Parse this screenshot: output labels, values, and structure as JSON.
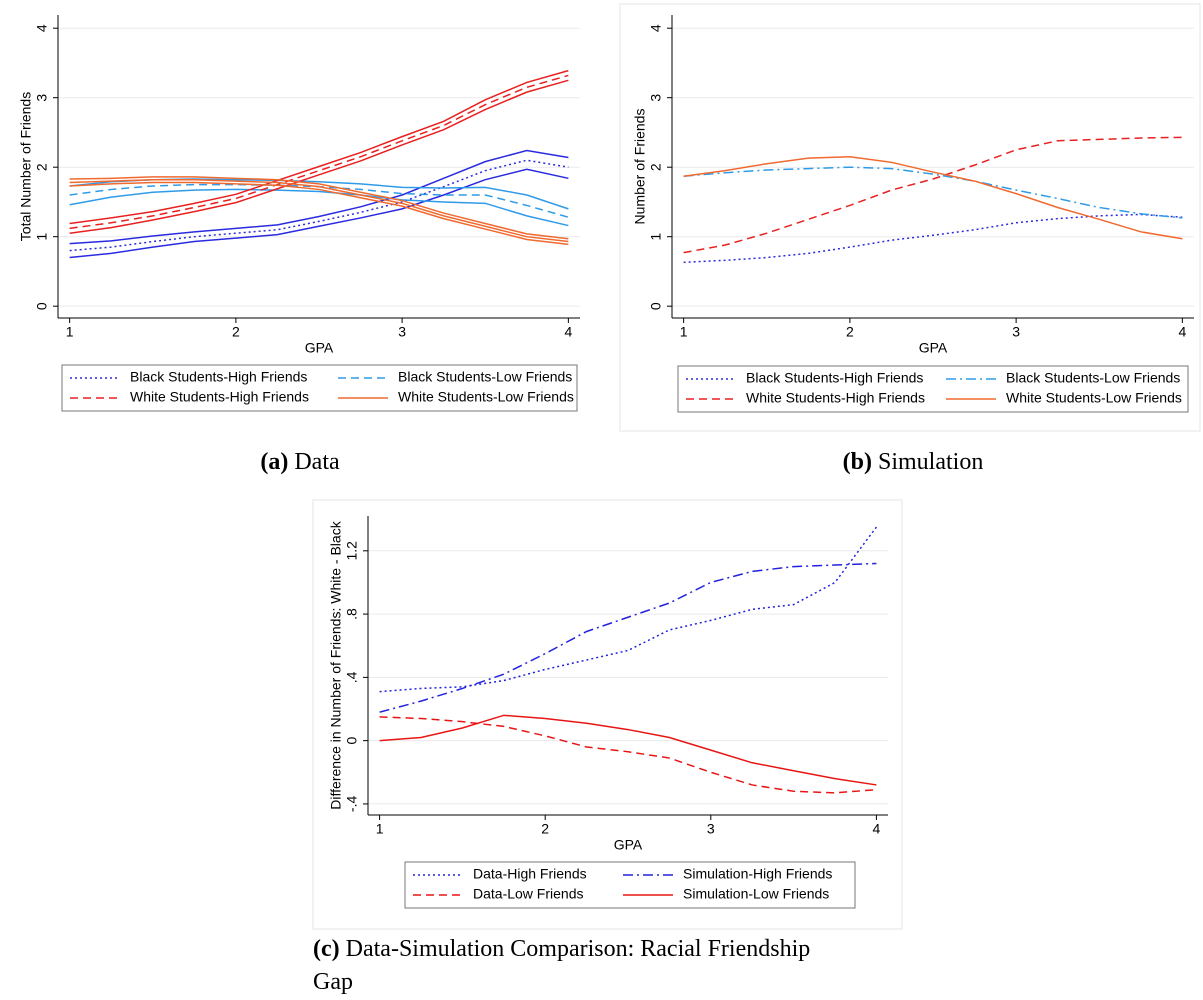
{
  "chart_data": [
    {
      "type": "line",
      "label": "(a)",
      "caption": [
        "Data"
      ],
      "xlabel": "GPA",
      "ylabel": "Total Number of Friends",
      "x": [
        1,
        1.25,
        1.5,
        1.75,
        2,
        2.25,
        2.5,
        2.75,
        3,
        3.25,
        3.5,
        3.75,
        4
      ],
      "xlim": [
        0.93,
        4.07
      ],
      "xticks": [
        1,
        2,
        3,
        4
      ],
      "ylim": [
        -0.17,
        4.19
      ],
      "yticks": [
        0,
        1,
        2,
        3,
        4
      ],
      "grid": true,
      "series": [
        {
          "name": "Black Students-High Friends",
          "color": "#2a2ae0",
          "style": "dotted",
          "values": [
            0.8,
            0.85,
            0.93,
            1.0,
            1.05,
            1.1,
            1.22,
            1.35,
            1.5,
            1.72,
            1.95,
            2.1,
            2.0
          ],
          "lower": [
            0.7,
            0.76,
            0.85,
            0.93,
            0.98,
            1.03,
            1.15,
            1.27,
            1.4,
            1.6,
            1.82,
            1.97,
            1.84
          ],
          "upper": [
            0.9,
            0.94,
            1.01,
            1.07,
            1.12,
            1.17,
            1.29,
            1.43,
            1.6,
            1.84,
            2.08,
            2.24,
            2.14
          ]
        },
        {
          "name": "Black Students-Low Friends",
          "color": "#2f9be8",
          "style": "dashed",
          "values": [
            1.6,
            1.68,
            1.73,
            1.75,
            1.75,
            1.74,
            1.72,
            1.68,
            1.62,
            1.6,
            1.6,
            1.45,
            1.28
          ],
          "lower": [
            1.46,
            1.57,
            1.64,
            1.67,
            1.68,
            1.67,
            1.65,
            1.6,
            1.53,
            1.5,
            1.48,
            1.3,
            1.16
          ],
          "upper": [
            1.73,
            1.79,
            1.82,
            1.83,
            1.82,
            1.81,
            1.79,
            1.76,
            1.71,
            1.7,
            1.71,
            1.6,
            1.4
          ]
        },
        {
          "name": "White Students-High Friends",
          "color": "#e82020",
          "style": "dashed",
          "values": [
            1.12,
            1.2,
            1.3,
            1.42,
            1.55,
            1.75,
            1.95,
            2.15,
            2.38,
            2.6,
            2.9,
            3.15,
            3.32
          ],
          "lower": [
            1.05,
            1.13,
            1.24,
            1.36,
            1.49,
            1.69,
            1.89,
            2.09,
            2.32,
            2.54,
            2.83,
            3.08,
            3.25
          ],
          "upper": [
            1.19,
            1.27,
            1.36,
            1.48,
            1.61,
            1.81,
            2.01,
            2.21,
            2.44,
            2.66,
            2.97,
            3.22,
            3.39
          ]
        },
        {
          "name": "White Students-Low Friends",
          "color": "#f06a30",
          "style": "solid",
          "values": [
            1.78,
            1.8,
            1.82,
            1.82,
            1.8,
            1.78,
            1.72,
            1.6,
            1.48,
            1.3,
            1.15,
            1.0,
            0.93
          ],
          "lower": [
            1.73,
            1.76,
            1.78,
            1.78,
            1.76,
            1.74,
            1.68,
            1.56,
            1.44,
            1.26,
            1.11,
            0.96,
            0.89
          ],
          "upper": [
            1.83,
            1.84,
            1.86,
            1.86,
            1.84,
            1.82,
            1.76,
            1.64,
            1.52,
            1.34,
            1.19,
            1.04,
            0.97
          ]
        }
      ]
    },
    {
      "type": "line",
      "label": "(b)",
      "caption": [
        "Simulation"
      ],
      "xlabel": "GPA",
      "ylabel": "Number of Friends",
      "x": [
        1,
        1.25,
        1.5,
        1.75,
        2,
        2.25,
        2.5,
        2.75,
        3,
        3.25,
        3.5,
        3.75,
        4
      ],
      "xlim": [
        0.93,
        4.07
      ],
      "xticks": [
        1,
        2,
        3,
        4
      ],
      "ylim": [
        -0.17,
        4.19
      ],
      "yticks": [
        0,
        1,
        2,
        3,
        4
      ],
      "grid": true,
      "series": [
        {
          "name": "Black Students-High Friends",
          "color": "#2a2ae0",
          "style": "dotted",
          "values": [
            0.63,
            0.66,
            0.7,
            0.76,
            0.85,
            0.95,
            1.02,
            1.1,
            1.2,
            1.26,
            1.3,
            1.32,
            1.28
          ]
        },
        {
          "name": "Black Students-Low Friends",
          "color": "#2f9be8",
          "style": "dashdot",
          "values": [
            1.87,
            1.92,
            1.96,
            1.98,
            2.0,
            1.98,
            1.9,
            1.8,
            1.67,
            1.55,
            1.42,
            1.33,
            1.27
          ]
        },
        {
          "name": "White Students-High Friends",
          "color": "#e82020",
          "style": "dashed",
          "values": [
            0.77,
            0.88,
            1.05,
            1.25,
            1.45,
            1.67,
            1.83,
            2.03,
            2.25,
            2.38,
            2.4,
            2.42,
            2.43
          ]
        },
        {
          "name": "White Students-Low Friends",
          "color": "#f06a30",
          "style": "solid",
          "values": [
            1.87,
            1.95,
            2.05,
            2.13,
            2.15,
            2.07,
            1.93,
            1.8,
            1.62,
            1.42,
            1.25,
            1.07,
            0.97
          ]
        }
      ]
    },
    {
      "type": "line",
      "label": "(c)",
      "caption": [
        "Data-Simulation Comparison: Racial Friendship",
        "Gap"
      ],
      "xlabel": "GPA",
      "ylabel": "Difference in Number of Friends: White - Black",
      "x": [
        1,
        1.25,
        1.5,
        1.75,
        2,
        2.25,
        2.5,
        2.75,
        3,
        3.25,
        3.5,
        3.75,
        4
      ],
      "xlim": [
        0.93,
        4.07
      ],
      "xticks": [
        1,
        2,
        3,
        4
      ],
      "ylim": [
        -0.47,
        1.42
      ],
      "yticks": [
        {
          "value": -0.4,
          "label": "-.4"
        },
        0,
        {
          "value": 0.4,
          "label": ".4"
        },
        {
          "value": 0.8,
          "label": ".8"
        },
        1.2
      ],
      "grid": true,
      "series": [
        {
          "name": "Data-High Friends",
          "color": "#2222dd",
          "style": "dotted",
          "values": [
            0.31,
            0.33,
            0.34,
            0.38,
            0.45,
            0.51,
            0.57,
            0.7,
            0.76,
            0.83,
            0.86,
            1.0,
            1.35
          ]
        },
        {
          "name": "Simulation-High Friends",
          "color": "#2222dd",
          "style": "dashdot",
          "values": [
            0.18,
            0.25,
            0.33,
            0.42,
            0.55,
            0.69,
            0.78,
            0.87,
            1.0,
            1.07,
            1.1,
            1.11,
            1.12
          ]
        },
        {
          "name": "Data-Low Friends",
          "color": "#e81515",
          "style": "dashed",
          "values": [
            0.15,
            0.14,
            0.12,
            0.09,
            0.03,
            -0.04,
            -0.07,
            -0.11,
            -0.2,
            -0.28,
            -0.32,
            -0.33,
            -0.31
          ]
        },
        {
          "name": "Simulation-Low Friends",
          "color": "#e81515",
          "style": "solid",
          "values": [
            0.0,
            0.02,
            0.08,
            0.16,
            0.14,
            0.11,
            0.07,
            0.02,
            -0.06,
            -0.14,
            -0.19,
            -0.24,
            -0.28
          ]
        }
      ]
    }
  ]
}
